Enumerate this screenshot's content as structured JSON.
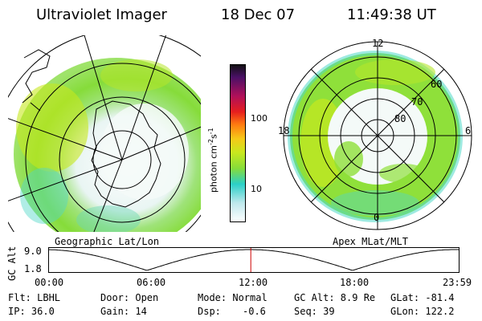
{
  "header": {
    "instrument": "Ultraviolet Imager",
    "date": "18 Dec 07",
    "time": "11:49:38 UT"
  },
  "left_panel": {
    "label": "Geographic Lat/Lon"
  },
  "right_panel": {
    "label": "Apex MLat/MLT",
    "mlt_labels": {
      "top": "12",
      "left": "18",
      "right": "6",
      "bottom": "0"
    },
    "lat_labels": [
      "60",
      "70",
      "80"
    ]
  },
  "colorbar": {
    "unit_label": "photon cm",
    "unit_exp1": "-2",
    "unit_s": "s",
    "unit_exp2": "-1",
    "ticks": [
      "100",
      "10"
    ]
  },
  "altitude_plot": {
    "ylabel": "GC Alt",
    "yticks": [
      "9.0",
      "1.8"
    ],
    "xticks": [
      "00:00",
      "06:00",
      "12:00",
      "18:00",
      "23:59"
    ],
    "marker_time_fraction": 0.4926
  },
  "info": {
    "flt": "Flt: LBHL",
    "door": "Door: Open",
    "mode": "Mode: Normal",
    "gcalt": "GC Alt: 8.9 Re",
    "glat": "GLat: -81.4",
    "ip": "IP: 36.0",
    "gain": "Gain: 14",
    "dsp_label": "Dsp:",
    "dsp_value": "-0.6",
    "seq": "Seq: 39",
    "glon": "GLon: 122.2"
  },
  "colors": {
    "emission_main": "#8fe03a",
    "emission_high": "#c6e81e",
    "emission_low": "#4fd8c8",
    "marker": "#cc0000"
  }
}
